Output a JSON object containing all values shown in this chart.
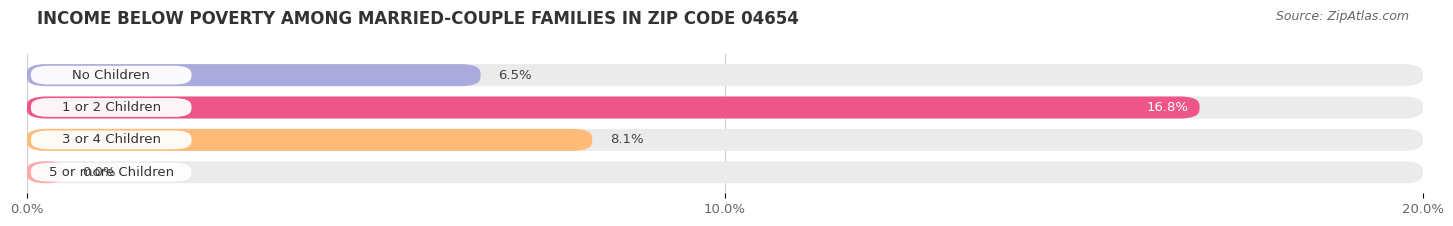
{
  "title": "INCOME BELOW POVERTY AMONG MARRIED-COUPLE FAMILIES IN ZIP CODE 04654",
  "source": "Source: ZipAtlas.com",
  "categories": [
    "No Children",
    "1 or 2 Children",
    "3 or 4 Children",
    "5 or more Children"
  ],
  "values": [
    6.5,
    16.8,
    8.1,
    0.0
  ],
  "bar_colors": [
    "#aaaadd",
    "#ee5588",
    "#ffbb77",
    "#ffaaaa"
  ],
  "value_label_colors": [
    "#444444",
    "#ffffff",
    "#444444",
    "#444444"
  ],
  "value_inside": [
    false,
    true,
    false,
    false
  ],
  "xlim": [
    0,
    20.0
  ],
  "xticks": [
    0.0,
    10.0,
    20.0
  ],
  "xtick_labels": [
    "0.0%",
    "10.0%",
    "20.0%"
  ],
  "background_color": "#ffffff",
  "bar_bg_color": "#ebebeb",
  "title_fontsize": 12,
  "source_fontsize": 9,
  "label_fontsize": 9.5,
  "tick_fontsize": 9.5
}
